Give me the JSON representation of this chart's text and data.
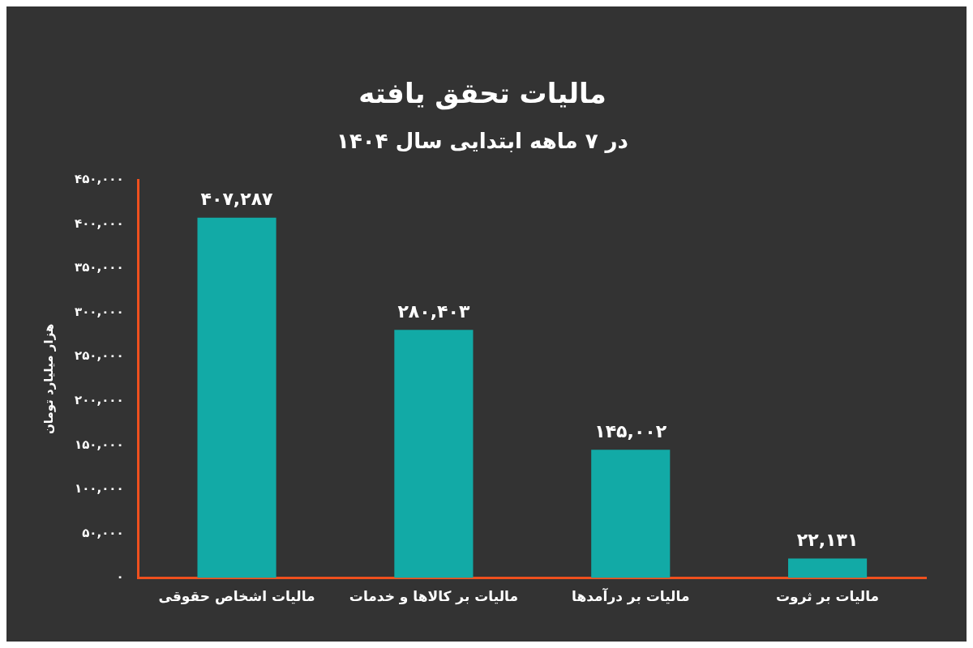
{
  "chart_data": {
    "type": "bar",
    "title": "مالیات تحقق یافته",
    "subtitle": "در ۷ ماهه ابتدایی سال ۱۴۰۴",
    "ylabel": "هزار میلیارد تومان",
    "categories": [
      "مالیات اشخاص حقوقی",
      "مالیات بر کالاها و خدمات",
      "مالیات بر درآمدها",
      "مالیات بر ثروت"
    ],
    "values": [
      407287,
      280403,
      145002,
      22131
    ],
    "value_labels": [
      "۴۰۷,۲۸۷",
      "۲۸۰,۴۰۳",
      "۱۴۵,۰۰۲",
      "۲۲,۱۳۱"
    ],
    "color": "#12aaa6",
    "ylim": [
      0,
      450000
    ],
    "yticks": [
      {
        "value": 0,
        "label": "۰"
      },
      {
        "value": 50000,
        "label": "۵۰,۰۰۰"
      },
      {
        "value": 100000,
        "label": "۱۰۰,۰۰۰"
      },
      {
        "value": 150000,
        "label": "۱۵۰,۰۰۰"
      },
      {
        "value": 200000,
        "label": "۲۰۰,۰۰۰"
      },
      {
        "value": 250000,
        "label": "۲۵۰,۰۰۰"
      },
      {
        "value": 300000,
        "label": "۳۰۰,۰۰۰"
      },
      {
        "value": 350000,
        "label": "۳۵۰,۰۰۰"
      },
      {
        "value": 400000,
        "label": "۴۰۰,۰۰۰"
      },
      {
        "value": 450000,
        "label": "۴۵۰,۰۰۰"
      }
    ],
    "grid": false,
    "legend": false
  }
}
